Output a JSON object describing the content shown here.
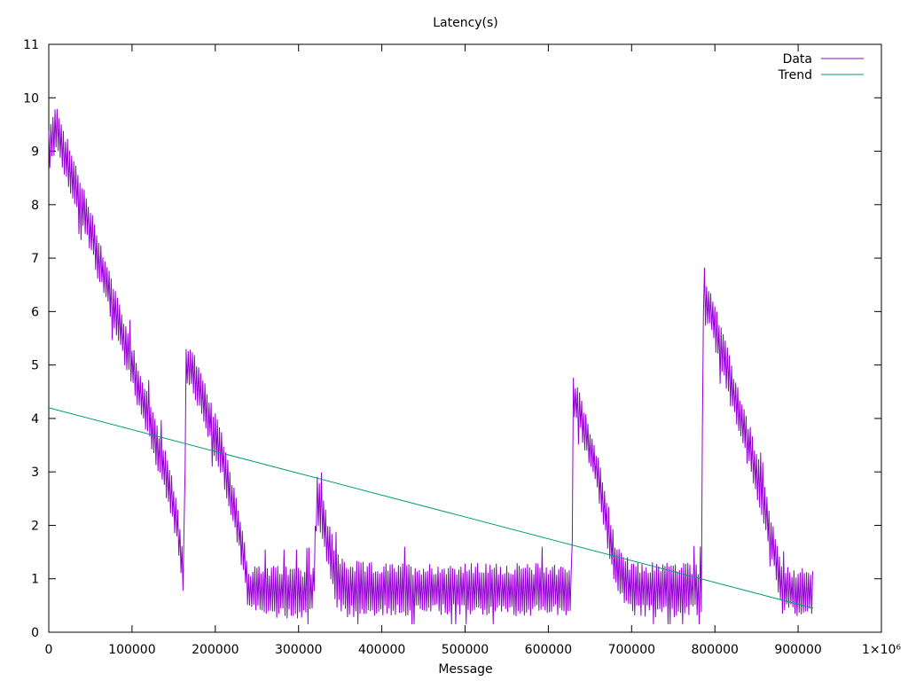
{
  "chart_data": {
    "type": "line",
    "title": "Latency(s)",
    "xlabel": "Message",
    "ylabel": "",
    "xlim": [
      0,
      1000000
    ],
    "ylim": [
      0,
      11
    ],
    "grid": false,
    "legend_position": "top-right",
    "x_ticks": [
      0,
      100000,
      200000,
      300000,
      400000,
      500000,
      600000,
      700000,
      800000,
      900000,
      1000000
    ],
    "x_tick_labels": [
      "0",
      "100000",
      "200000",
      "300000",
      "400000",
      "500000",
      "600000",
      "700000",
      "800000",
      "900000",
      "1×10⁶"
    ],
    "y_ticks": [
      0,
      1,
      2,
      3,
      4,
      5,
      6,
      7,
      8,
      9,
      10,
      11
    ],
    "y_tick_labels": [
      "0",
      "1",
      "2",
      "3",
      "4",
      "5",
      "6",
      "7",
      "8",
      "9",
      "10",
      "11"
    ],
    "series": [
      {
        "name": "Data",
        "color": "#9400d3",
        "style": "oscillating",
        "x": [
          0,
          10000,
          20000,
          40000,
          60000,
          80000,
          100000,
          120000,
          140000,
          155000,
          162000,
          165000,
          170000,
          190000,
          210000,
          230000,
          240000,
          260000,
          280000,
          300000,
          318000,
          322000,
          330000,
          345000,
          360000,
          400000,
          450000,
          500000,
          550000,
          600000,
          628000,
          630000,
          640000,
          660000,
          680000,
          700000,
          740000,
          784000,
          786000,
          795000,
          820000,
          850000,
          872000,
          880000,
          900000,
          918000
        ],
        "y": [
          9.0,
          9.5,
          8.9,
          8.0,
          7.0,
          6.0,
          5.0,
          4.0,
          3.0,
          2.0,
          1.0,
          5.0,
          5.0,
          4.1,
          3.2,
          1.8,
          0.8,
          0.75,
          0.75,
          0.75,
          0.8,
          2.6,
          2.0,
          1.0,
          0.8,
          0.8,
          0.8,
          0.8,
          0.8,
          0.8,
          0.8,
          4.4,
          4.0,
          2.9,
          1.3,
          0.8,
          0.8,
          0.8,
          6.2,
          6.0,
          4.6,
          3.0,
          1.5,
          0.8,
          0.75,
          0.75
        ],
        "amplitude": [
          0.45,
          0.45,
          0.45,
          0.45,
          0.45,
          0.45,
          0.45,
          0.45,
          0.45,
          0.45,
          0.35,
          0.45,
          0.45,
          0.45,
          0.45,
          0.45,
          0.45,
          0.5,
          0.5,
          0.5,
          0.5,
          0.5,
          0.5,
          0.55,
          0.55,
          0.5,
          0.5,
          0.5,
          0.5,
          0.5,
          0.5,
          0.4,
          0.4,
          0.45,
          0.45,
          0.5,
          0.55,
          0.5,
          0.4,
          0.45,
          0.45,
          0.45,
          0.4,
          0.45,
          0.45,
          0.45
        ]
      },
      {
        "name": "Trend",
        "color": "#009e73",
        "style": "line",
        "x": [
          0,
          918000
        ],
        "y": [
          4.2,
          0.45
        ]
      }
    ]
  }
}
